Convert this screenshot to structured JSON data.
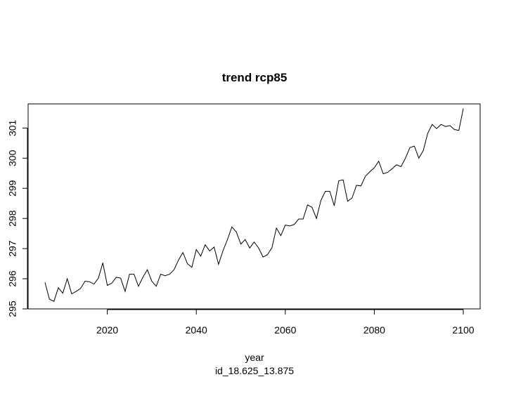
{
  "chart_data": {
    "type": "line",
    "title": "trend rcp85",
    "xlabel": "year",
    "sublabel": "id_18.625_13.875",
    "ylabel": "",
    "xlim": [
      2006,
      2100
    ],
    "ylim": [
      295,
      301.8
    ],
    "x_ticks": [
      2020,
      2040,
      2060,
      2080,
      2100
    ],
    "y_ticks": [
      295,
      296,
      297,
      298,
      299,
      300,
      301
    ],
    "grid": false,
    "line_color": "#000000",
    "series": [
      {
        "x": [
          2006,
          2007,
          2008,
          2009,
          2010,
          2011,
          2012,
          2013,
          2014,
          2015,
          2016,
          2017,
          2018,
          2019,
          2020,
          2021,
          2022,
          2023,
          2024,
          2025,
          2026,
          2027,
          2028,
          2029,
          2030,
          2031,
          2032,
          2033,
          2034,
          2035,
          2036,
          2037,
          2038,
          2039,
          2040,
          2041,
          2042,
          2043,
          2044,
          2045,
          2046,
          2047,
          2048,
          2049,
          2050,
          2051,
          2052,
          2053,
          2054,
          2055,
          2056,
          2057,
          2058,
          2059,
          2060,
          2061,
          2062,
          2063,
          2064,
          2065,
          2066,
          2067,
          2068,
          2069,
          2070,
          2071,
          2072,
          2073,
          2074,
          2075,
          2076,
          2077,
          2078,
          2079,
          2080,
          2081,
          2082,
          2083,
          2084,
          2085,
          2086,
          2087,
          2088,
          2089,
          2090,
          2091,
          2092,
          2093,
          2094,
          2095,
          2096,
          2097,
          2098,
          2099,
          2100
        ],
        "y": [
          295.88,
          295.32,
          295.25,
          295.7,
          295.52,
          296.0,
          295.5,
          295.58,
          295.68,
          295.92,
          295.9,
          295.82,
          296.02,
          296.53,
          295.78,
          295.85,
          296.05,
          296.02,
          295.58,
          296.15,
          296.15,
          295.75,
          296.05,
          296.3,
          295.92,
          295.75,
          296.15,
          296.1,
          296.15,
          296.3,
          296.62,
          296.87,
          296.5,
          296.38,
          296.97,
          296.75,
          297.13,
          296.92,
          297.05,
          296.48,
          296.93,
          297.3,
          297.72,
          297.55,
          297.15,
          297.3,
          297.02,
          297.22,
          297.02,
          296.72,
          296.8,
          297.03,
          297.68,
          297.43,
          297.78,
          297.75,
          297.8,
          297.98,
          297.98,
          298.45,
          298.37,
          298.0,
          298.6,
          298.9,
          298.9,
          298.42,
          299.25,
          299.28,
          298.57,
          298.68,
          299.1,
          299.08,
          299.4,
          299.55,
          299.68,
          299.9,
          299.48,
          299.53,
          299.65,
          299.78,
          299.72,
          300.0,
          300.35,
          300.4,
          300.0,
          300.25,
          300.82,
          301.12,
          300.98,
          301.12,
          301.05,
          301.08,
          300.95,
          300.92,
          301.65
        ]
      }
    ]
  }
}
